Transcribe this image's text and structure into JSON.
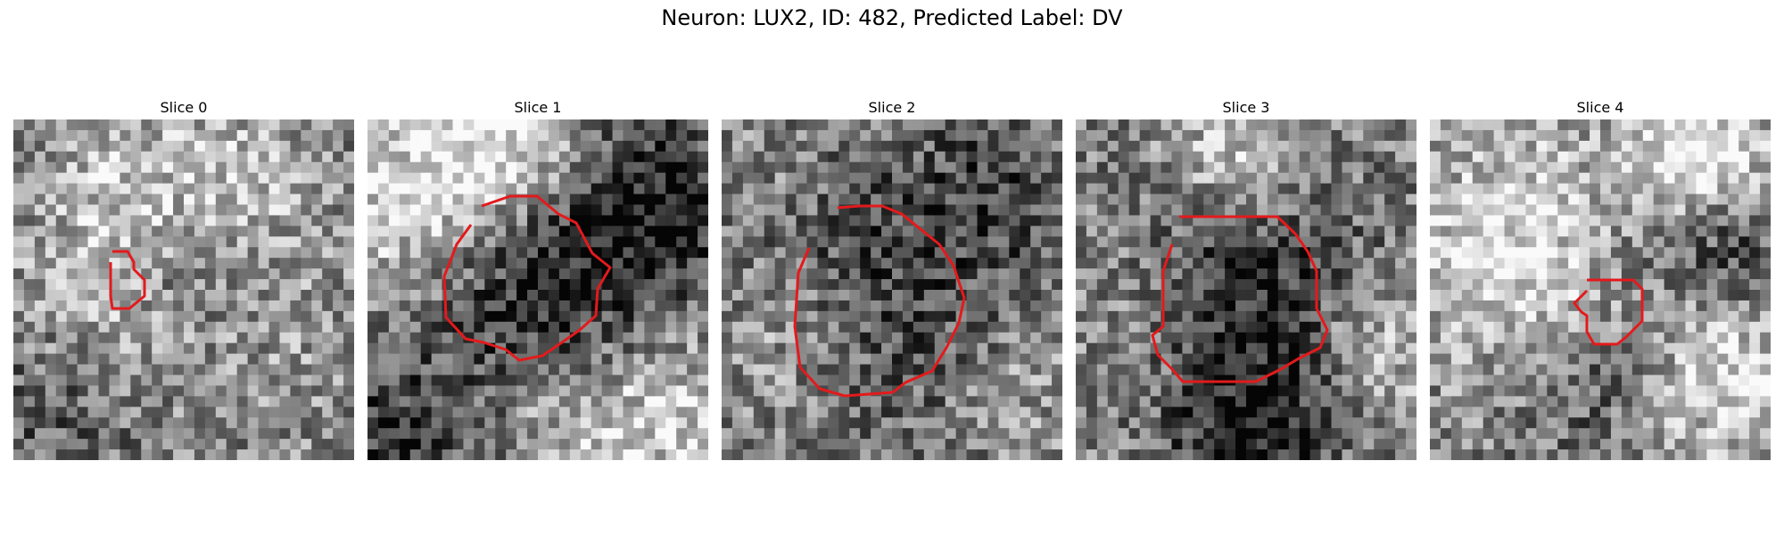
{
  "figure": {
    "title": "Neuron: LUX2, ID: 482, Predicted Label: DV"
  },
  "panels": [
    {
      "title": "Slice 0"
    },
    {
      "title": "Slice 1"
    },
    {
      "title": "Slice 2"
    },
    {
      "title": "Slice 3"
    },
    {
      "title": "Slice 4"
    }
  ],
  "colors": {
    "background": "#ffffff",
    "contour": "#e31a1c",
    "colormap": "grayscale"
  }
}
